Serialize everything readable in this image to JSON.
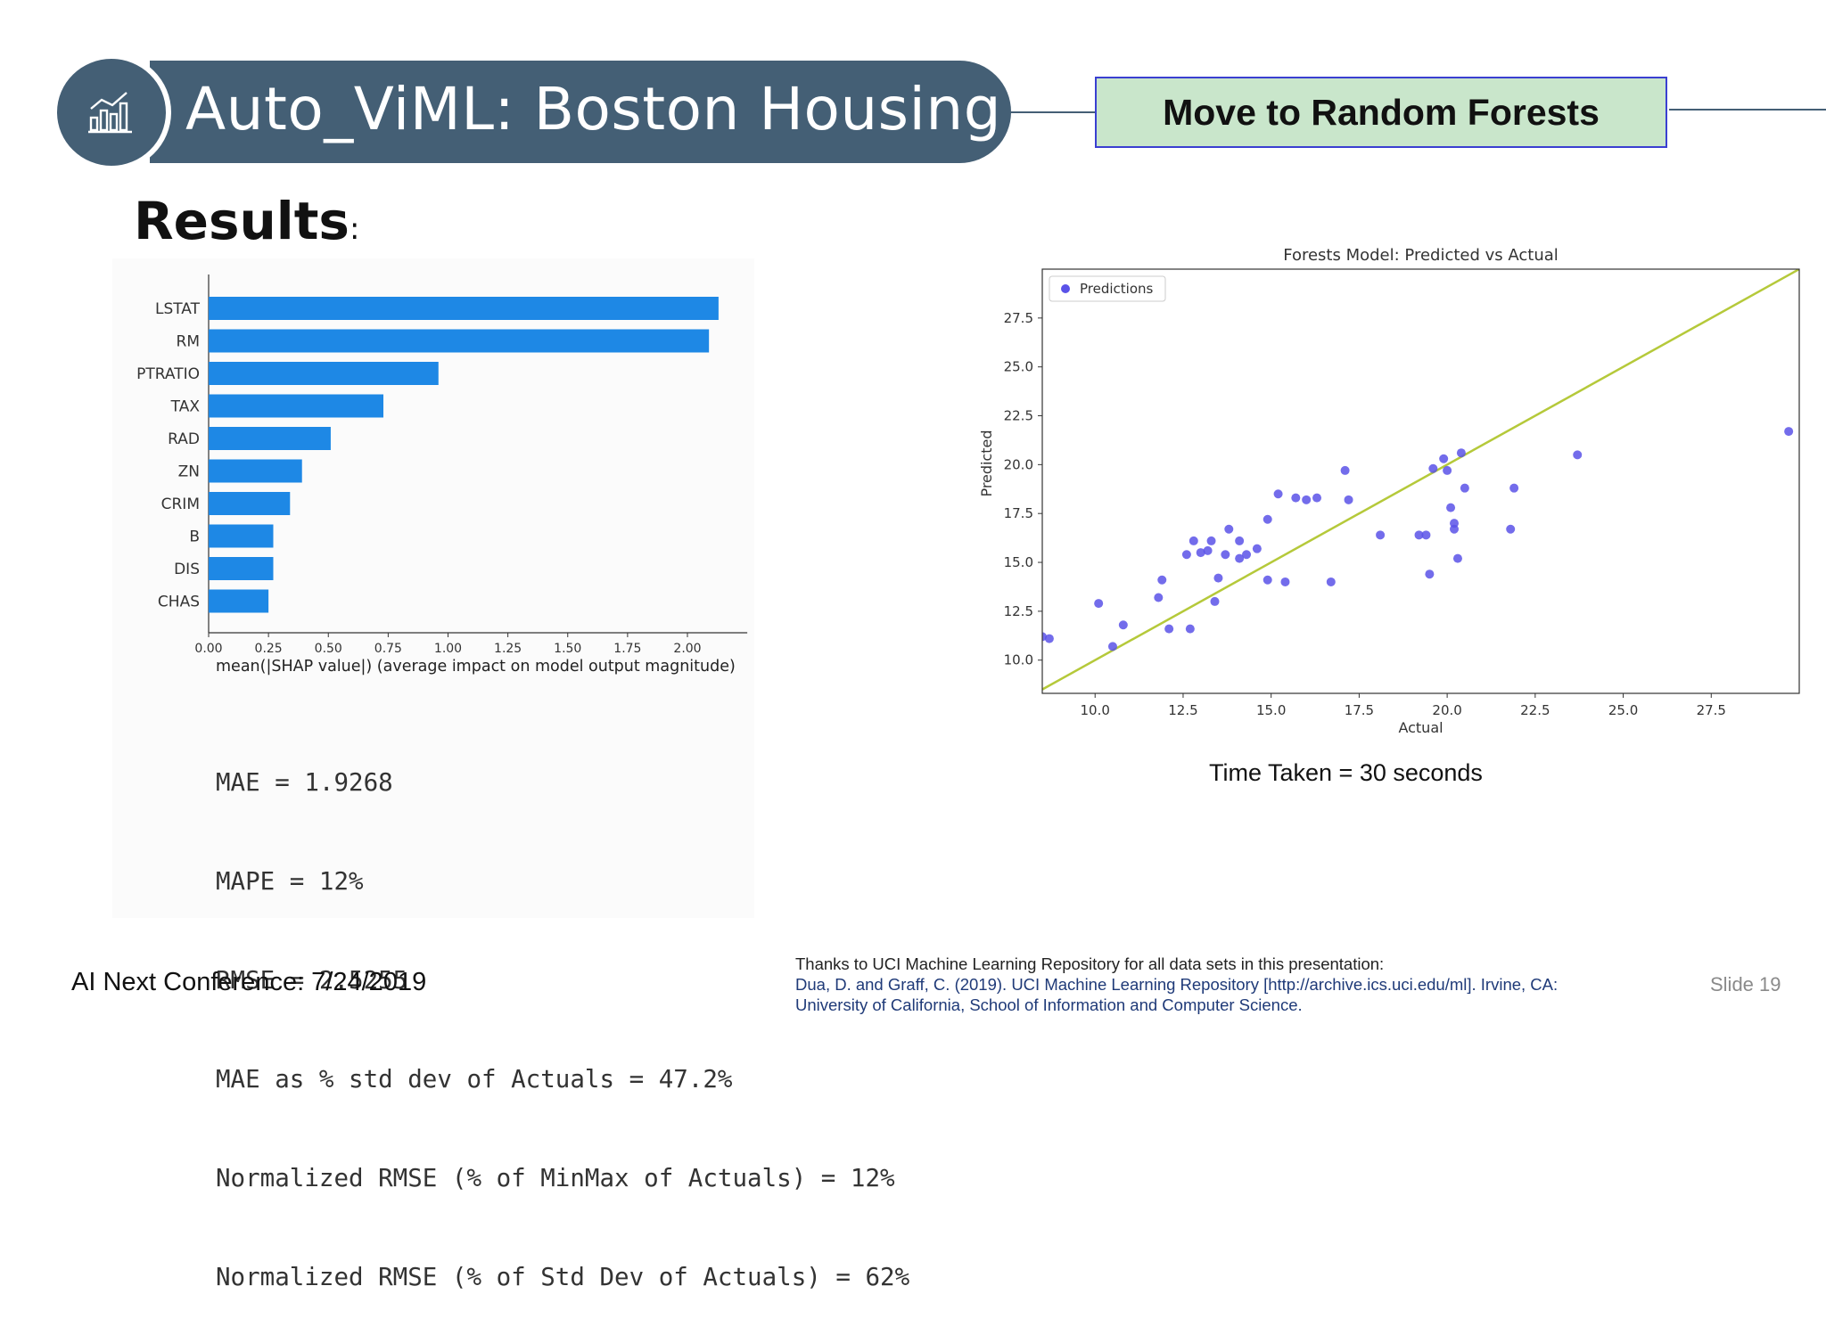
{
  "header": {
    "title": "Auto_ViML: Boston Housing",
    "action_label": "Move to Random Forests",
    "icon": "bar-chart-icon"
  },
  "section_heading": "Results",
  "section_heading_suffix": ":",
  "chart_data": [
    {
      "type": "bar",
      "orientation": "horizontal",
      "categories": [
        "LSTAT",
        "RM",
        "PTRATIO",
        "TAX",
        "RAD",
        "ZN",
        "CRIM",
        "B",
        "DIS",
        "CHAS"
      ],
      "values": [
        2.13,
        2.09,
        0.96,
        0.73,
        0.51,
        0.39,
        0.34,
        0.27,
        0.27,
        0.25
      ],
      "xlabel": "mean(|SHAP value|) (average impact on model output magnitude)",
      "xticks": [
        "0.00",
        "0.25",
        "0.50",
        "0.75",
        "1.00",
        "1.25",
        "1.50",
        "1.75",
        "2.00"
      ],
      "xlim": [
        0,
        2.25
      ],
      "bar_color": "#1e88e5"
    },
    {
      "type": "scatter",
      "title": "Forests Model: Predicted vs Actual",
      "xlabel": "Actual",
      "ylabel": "Predicted",
      "xlim": [
        8.5,
        30
      ],
      "ylim": [
        8.3,
        30
      ],
      "xticks": [
        "10.0",
        "12.5",
        "15.0",
        "17.5",
        "20.0",
        "22.5",
        "25.0",
        "27.5"
      ],
      "yticks": [
        "10.0",
        "12.5",
        "15.0",
        "17.5",
        "20.0",
        "22.5",
        "25.0",
        "27.5"
      ],
      "legend": "Predictions",
      "legend_position": "top-left",
      "point_color": "#5a52e8",
      "line_color": "#b5c93a",
      "reference_line": "y = x",
      "series": [
        {
          "name": "Predictions",
          "x": [
            8.5,
            8.7,
            10.1,
            10.5,
            10.8,
            11.9,
            12.1,
            11.8,
            12.6,
            12.8,
            12.7,
            13.0,
            13.2,
            13.3,
            13.4,
            13.5,
            13.7,
            13.8,
            14.1,
            14.1,
            14.3,
            14.6,
            14.9,
            14.9,
            15.2,
            15.4,
            15.7,
            16.0,
            16.3,
            16.7,
            17.1,
            17.2,
            19.2,
            18.1,
            19.4,
            19.5,
            19.6,
            19.9,
            20.0,
            20.1,
            20.2,
            20.3,
            20.4,
            20.5,
            20.2,
            21.8,
            21.9,
            23.7,
            29.7
          ],
          "y": [
            11.2,
            11.1,
            12.9,
            10.7,
            11.8,
            14.1,
            11.6,
            13.2,
            15.4,
            16.1,
            11.6,
            15.5,
            15.6,
            16.1,
            13.0,
            14.2,
            15.4,
            16.7,
            15.2,
            16.1,
            15.4,
            15.7,
            14.1,
            17.2,
            18.5,
            14.0,
            18.3,
            18.2,
            18.3,
            14.0,
            19.7,
            18.2,
            16.4,
            16.4,
            16.4,
            14.4,
            19.8,
            20.3,
            19.7,
            17.8,
            17.0,
            15.2,
            20.6,
            18.8,
            16.7,
            16.7,
            18.8,
            20.5,
            21.7
          ]
        }
      ]
    }
  ],
  "metrics": [
    "MAE = 1.9268",
    "MAPE = 12%",
    "RMSE = 2.5255",
    "MAE as % std dev of Actuals = 47.2%",
    "Normalized RMSE (% of MinMax of Actuals) = 12%",
    "Normalized RMSE (% of Std Dev of Actuals) = 62%"
  ],
  "time_taken": "Time Taken = 30 seconds",
  "footer": {
    "conference": "AI Next Conference: 7/24/2019",
    "credits_line1": "Thanks to UCI Machine Learning Repository for all data sets in this presentation:",
    "credits_line2": "Dua, D. and Graff, C. (2019). UCI Machine Learning Repository [http://archive.ics.uci.edu/ml]. Irvine, CA:",
    "credits_line3": "University of California, School of Information and Computer Science.",
    "slide_number": "Slide 19"
  }
}
